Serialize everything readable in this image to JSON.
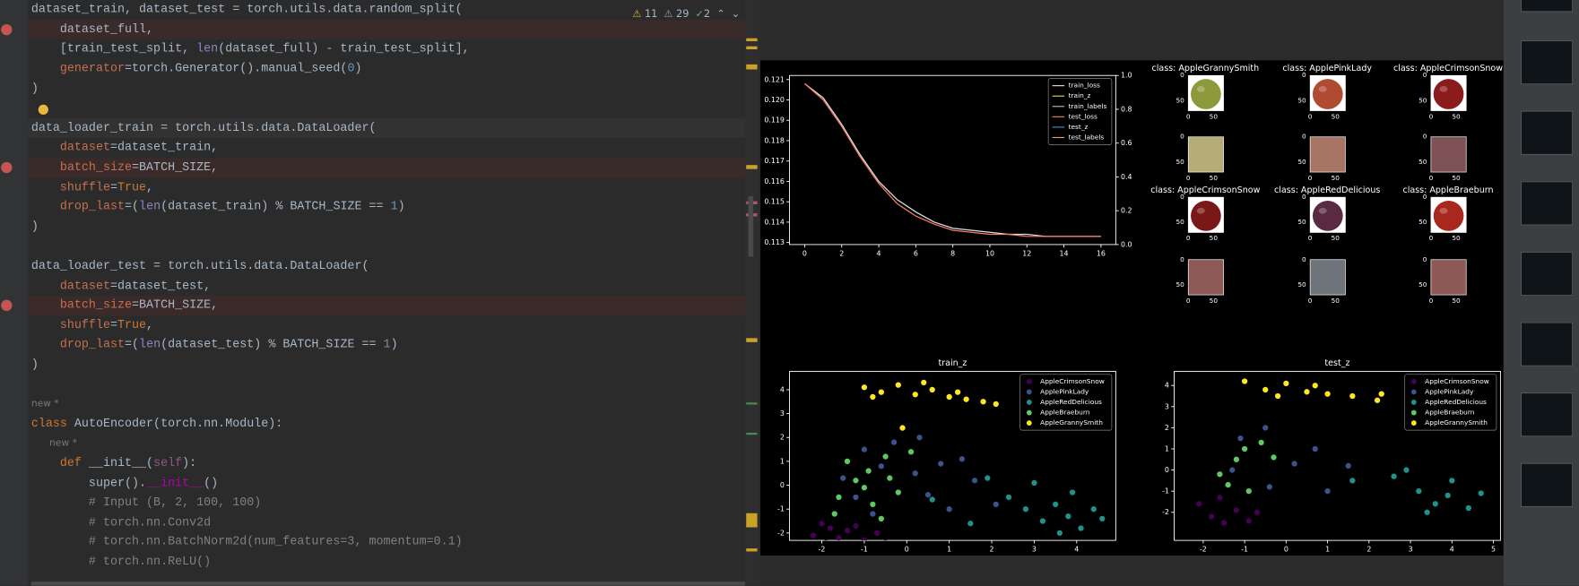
{
  "editor": {
    "inspections": {
      "errors": 11,
      "warnings": 29,
      "ok": 2
    },
    "lines": [
      "dataset_train, dataset_test = torch.utils.data.random_split(",
      "    dataset_full,",
      "    [train_test_split, len(dataset_full) - train_test_split],",
      "    generator=torch.Generator().manual_seed(0)",
      ")",
      null,
      "data_loader_train = torch.utils.data.DataLoader(",
      "    dataset=dataset_train,",
      "    batch_size=BATCH_SIZE,",
      "    shuffle=True,",
      "    drop_last=(len(dataset_train) % BATCH_SIZE == 1)",
      ")",
      null,
      "data_loader_test = torch.utils.data.DataLoader(",
      "    dataset=dataset_test,",
      "    batch_size=BATCH_SIZE,",
      "    shuffle=True,",
      "    drop_last=(len(dataset_test) % BATCH_SIZE == 1)",
      ")",
      null,
      {
        "hint": "new *"
      },
      "class AutoEncoder(torch.nn.Module):",
      {
        "hint": "      new *"
      },
      "    def __init__(self):",
      "        super().__init__()",
      "        # Input (B, 2, 100, 100)",
      "        # torch.nn.Conv2d",
      "        # torch.nn.BatchNorm2d(num_features=3, momentum=0.1)",
      "        # torch.nn.ReLU()"
    ]
  },
  "chart_data": [
    {
      "type": "line",
      "legend": "upper right",
      "x": [
        0,
        1,
        2,
        3,
        4,
        5,
        6,
        7,
        8,
        9,
        10,
        11,
        12,
        13,
        14,
        15,
        16
      ],
      "xlim": [
        -0.82,
        16.8
      ],
      "xticks": [
        0,
        2,
        4,
        6,
        8,
        10,
        12,
        14,
        16
      ],
      "ylim": [
        0.1129,
        0.1212
      ],
      "yticks": [
        0.113,
        0.114,
        0.115,
        0.116,
        0.117,
        0.118,
        0.119,
        {
          "value": 0.12,
          "label": "0.120"
        },
        0.121
      ],
      "y2lim": [
        0,
        1
      ],
      "y2ticks": [
        {
          "value": 0,
          "label": "0.0"
        },
        0.2,
        0.4,
        0.6,
        0.8,
        {
          "value": 1,
          "label": "1.0"
        }
      ],
      "series": [
        {
          "name": "train_loss",
          "color": "#d8e4ea",
          "values": [
            0.1208,
            0.1201,
            0.1188,
            0.1173,
            0.116,
            0.1151,
            0.1145,
            0.114,
            0.1137,
            0.1136,
            0.1135,
            0.1134,
            0.1134,
            0.1133,
            0.1133,
            0.1133,
            0.1133
          ]
        },
        {
          "name": "train_z",
          "color": "#e8d44d"
        },
        {
          "name": "train_labels",
          "color": "#bbbbbb"
        },
        {
          "name": "test_loss",
          "color": "#ff7b63",
          "values": [
            0.1208,
            0.12,
            0.1187,
            0.1172,
            0.1159,
            0.1149,
            0.1143,
            0.1139,
            0.1136,
            0.1135,
            0.1134,
            0.1134,
            0.1133,
            0.1133,
            0.1133,
            0.1133,
            0.1133
          ]
        },
        {
          "name": "test_z",
          "color": "#4a90d9"
        },
        {
          "name": "test_labels",
          "color": "#f5a04a"
        }
      ]
    },
    {
      "type": "scatter",
      "title": "train_z",
      "legend": "upper right",
      "xlim": [
        -2.76,
        4.92
      ],
      "xticks": [
        -2,
        -1,
        0,
        1,
        2,
        3,
        4
      ],
      "ylim": [
        -2.31,
        4.77
      ],
      "yticks": [
        -2,
        -1,
        0,
        1,
        2,
        3,
        4
      ],
      "series": [
        {
          "name": "AppleCrimsonSnow",
          "color": "#440154",
          "x": [
            -2.2,
            -1.9,
            -1.6,
            -1.3,
            -1.0,
            -0.7,
            -1.8,
            -1.4,
            -1.1,
            -0.5,
            -2.0,
            -1.2
          ],
          "y": [
            -2.1,
            -2.4,
            -2.2,
            -2.5,
            -2.3,
            -2.0,
            -1.8,
            -1.9,
            -2.6,
            -2.4,
            -1.6,
            -1.7
          ]
        },
        {
          "name": "ApplePinkLady",
          "color": "#3b528b",
          "x": [
            -1.0,
            -0.6,
            -0.3,
            0.2,
            -1.2,
            0.5,
            1.0,
            1.6,
            2.1,
            -0.8,
            0.3,
            1.3,
            -1.5,
            0.8
          ],
          "y": [
            1.5,
            0.8,
            1.8,
            0.5,
            -0.5,
            -0.4,
            -1.0,
            0.2,
            -0.8,
            -1.2,
            2.0,
            1.1,
            0.3,
            0.9
          ]
        },
        {
          "name": "AppleRedDelicious",
          "color": "#21918c",
          "x": [
            2.8,
            3.2,
            3.5,
            3.8,
            4.1,
            4.4,
            3.0,
            2.4,
            3.6,
            1.5,
            4.6,
            1.9,
            0.6,
            3.9
          ],
          "y": [
            -1.0,
            -1.5,
            -0.8,
            -1.3,
            -1.8,
            -1.0,
            0.1,
            -0.5,
            -2.0,
            -1.6,
            -1.4,
            0.3,
            -0.6,
            -0.3
          ]
        },
        {
          "name": "AppleBraeburn",
          "color": "#5ec962",
          "x": [
            -1.6,
            -1.2,
            -0.8,
            -0.5,
            -1.4,
            -0.9,
            -0.2,
            -1.7,
            -0.4,
            -1.0,
            0.1,
            -0.6
          ],
          "y": [
            -0.5,
            0.2,
            -0.8,
            1.2,
            1.0,
            0.6,
            -0.3,
            -1.2,
            0.3,
            -0.1,
            1.4,
            -1.4
          ]
        },
        {
          "name": "AppleGrannySmith",
          "color": "#fde725",
          "x": [
            -1.0,
            -0.6,
            -0.2,
            0.2,
            0.6,
            1.0,
            1.4,
            1.8,
            2.1,
            -0.8,
            0.4,
            1.2,
            -0.1
          ],
          "y": [
            4.1,
            3.9,
            4.2,
            3.8,
            4.0,
            3.7,
            3.6,
            3.5,
            3.4,
            3.7,
            4.3,
            3.9,
            2.4
          ]
        }
      ]
    },
    {
      "type": "scatter",
      "title": "test_z",
      "legend": "upper right",
      "xlim": [
        -2.7,
        5.17
      ],
      "xticks": [
        -2,
        -1,
        0,
        1,
        2,
        3,
        4,
        5
      ],
      "ylim": [
        -3.33,
        4.67
      ],
      "yticks": [
        -2,
        -1,
        0,
        1,
        2,
        3,
        4
      ],
      "series": [
        {
          "name": "AppleCrimsonSnow",
          "color": "#440154",
          "x": [
            -2.1,
            -1.8,
            -1.5,
            -1.2,
            -0.9,
            -1.6,
            -0.7
          ],
          "y": [
            -1.6,
            -2.2,
            -2.5,
            -1.9,
            -2.4,
            -1.3,
            -2.0
          ]
        },
        {
          "name": "ApplePinkLady",
          "color": "#3b528b",
          "x": [
            -1.1,
            -0.5,
            0.2,
            0.7,
            -1.3,
            1.0,
            1.5,
            -0.4
          ],
          "y": [
            1.5,
            2.0,
            0.3,
            1.0,
            0.0,
            -1.0,
            0.2,
            -0.8
          ]
        },
        {
          "name": "AppleRedDelicious",
          "color": "#21918c",
          "x": [
            2.9,
            3.2,
            3.6,
            4.0,
            4.4,
            3.4,
            2.6,
            1.6,
            4.7,
            3.9
          ],
          "y": [
            0.0,
            -1.0,
            -1.6,
            -0.5,
            -1.8,
            -2.0,
            -0.3,
            -0.5,
            -1.1,
            -1.2
          ]
        },
        {
          "name": "AppleBraeburn",
          "color": "#5ec962",
          "x": [
            -1.6,
            -1.2,
            -0.9,
            -0.6,
            -1.4,
            -0.3,
            -1.0
          ],
          "y": [
            -0.2,
            0.5,
            -1.0,
            1.3,
            -0.7,
            0.6,
            1.0
          ]
        },
        {
          "name": "AppleGrannySmith",
          "color": "#fde725",
          "x": [
            -1.0,
            -0.5,
            0.0,
            0.5,
            1.0,
            1.6,
            2.2,
            -0.2,
            0.7,
            2.3
          ],
          "y": [
            4.2,
            3.8,
            4.1,
            3.7,
            3.6,
            3.5,
            3.3,
            3.5,
            4.0,
            3.6
          ]
        }
      ]
    }
  ],
  "image_grid": {
    "ticks": [
      0,
      50
    ],
    "panels": [
      {
        "title": "class: AppleGrannySmith",
        "apple_color": "#8c9a3c",
        "mean_color": "#b5ad77"
      },
      {
        "title": "class: ApplePinkLady",
        "apple_color": "#b04a30",
        "mean_color": "#a87464"
      },
      {
        "title": "class: AppleCrimsonSnow",
        "apple_color": "#8a1c1c",
        "mean_color": "#7e5254"
      },
      {
        "title": "class: AppleCrimsonSnow",
        "apple_color": "#7a1818",
        "mean_color": "#8e5a56"
      },
      {
        "title": "class: AppleRedDelicious",
        "apple_color": "#5a2a40",
        "mean_color": "#6f747b"
      },
      {
        "title": "class: AppleBraeburn",
        "apple_color": "#a8281e",
        "mean_color": "#8e5954"
      }
    ]
  }
}
